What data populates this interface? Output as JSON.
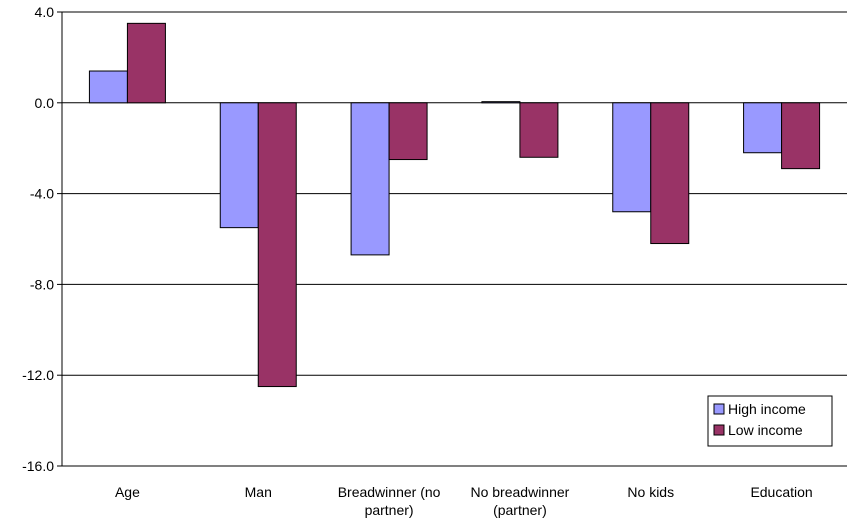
{
  "chart_data": {
    "type": "bar",
    "title": "",
    "xlabel": "",
    "ylabel": "",
    "categories": [
      [
        "Age"
      ],
      [
        "Man"
      ],
      [
        "Breadwinner (no",
        "partner)"
      ],
      [
        "No breadwinner",
        "(partner)"
      ],
      [
        "No kids"
      ],
      [
        "Education"
      ]
    ],
    "series": [
      {
        "name": "High income",
        "color": "#9999ff",
        "values": [
          1.4,
          -5.5,
          -6.7,
          0.05,
          -4.8,
          -2.2
        ]
      },
      {
        "name": "Low income",
        "color": "#993366",
        "values": [
          3.5,
          -12.5,
          -2.5,
          -2.4,
          -6.2,
          -2.9
        ]
      }
    ],
    "ylim": [
      -16,
      4
    ],
    "yticks": [
      4,
      0,
      -4,
      -8,
      -12,
      -16
    ],
    "ytick_labels": [
      "4.0",
      "0.0",
      "-4.0",
      "-8.0",
      "-12.0",
      "-16.0"
    ],
    "grid": true,
    "legend": "bottom-right"
  }
}
